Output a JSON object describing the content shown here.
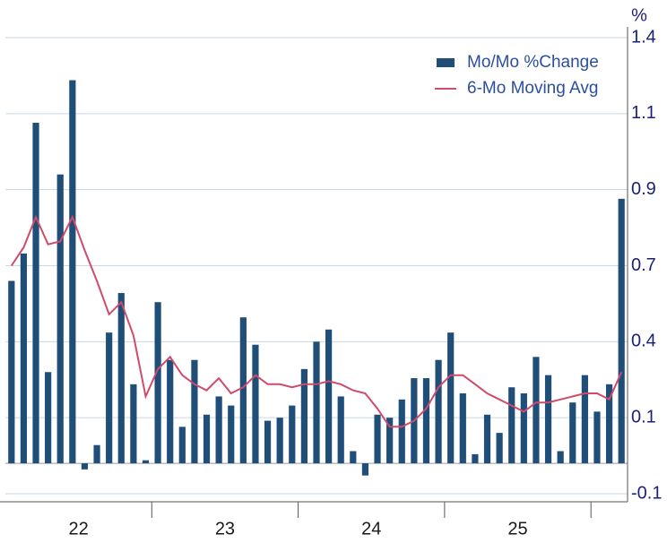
{
  "chart_data": {
    "type": "bar-line",
    "y_label": "%",
    "categories": [
      null,
      null,
      null,
      null,
      null,
      "22",
      null,
      null,
      null,
      null,
      null,
      null,
      null,
      null,
      null,
      null,
      null,
      "23",
      null,
      null,
      null,
      null,
      null,
      null,
      null,
      null,
      null,
      null,
      null,
      "24",
      null,
      null,
      null,
      null,
      null,
      null,
      null,
      null,
      null,
      null,
      null,
      "25",
      null,
      null,
      null,
      null,
      null,
      null,
      null,
      null,
      null
    ],
    "series": [
      {
        "name": "Mo/Mo %Change",
        "type": "bar",
        "color": "#1f4e79",
        "values": [
          0.6,
          0.69,
          1.12,
          0.3,
          0.95,
          1.26,
          -0.02,
          0.06,
          0.43,
          0.56,
          0.26,
          0.01,
          0.53,
          0.34,
          0.12,
          0.34,
          0.16,
          0.22,
          0.19,
          0.48,
          0.39,
          0.14,
          0.15,
          0.19,
          0.31,
          0.4,
          0.44,
          0.22,
          0.04,
          -0.04,
          0.16,
          0.15,
          0.21,
          0.28,
          0.28,
          0.34,
          0.43,
          0.23,
          0.03,
          0.16,
          0.1,
          0.25,
          0.23,
          0.35,
          0.29,
          0.04,
          0.2,
          0.29,
          0.17,
          0.26,
          0.87
        ]
      },
      {
        "name": "6-Mo Moving Avg",
        "type": "line",
        "color": "#d04a6a",
        "values": [
          0.65,
          0.71,
          0.81,
          0.72,
          0.73,
          0.81,
          0.7,
          0.6,
          0.49,
          0.53,
          0.42,
          0.22,
          0.31,
          0.35,
          0.29,
          0.26,
          0.24,
          0.28,
          0.23,
          0.25,
          0.29,
          0.26,
          0.26,
          0.25,
          0.26,
          0.26,
          0.27,
          0.26,
          0.24,
          0.23,
          0.18,
          0.12,
          0.12,
          0.14,
          0.18,
          0.25,
          0.29,
          0.29,
          0.26,
          0.23,
          0.21,
          0.19,
          0.17,
          0.2,
          0.2,
          0.21,
          0.22,
          0.23,
          0.23,
          0.21,
          0.3
        ]
      }
    ],
    "ylim": [
      -0.1,
      1.4
    ],
    "yticks": [
      {
        "value": -0.1,
        "label": "-0.1"
      },
      {
        "value": 0.15,
        "label": "0.1"
      },
      {
        "value": 0.4,
        "label": "0.4"
      },
      {
        "value": 0.65,
        "label": "0.7"
      },
      {
        "value": 0.9,
        "label": "0.9"
      },
      {
        "value": 1.15,
        "label": "1.1"
      },
      {
        "value": 1.4,
        "label": "1.4"
      }
    ],
    "grid": true,
    "legend": "upper right"
  }
}
